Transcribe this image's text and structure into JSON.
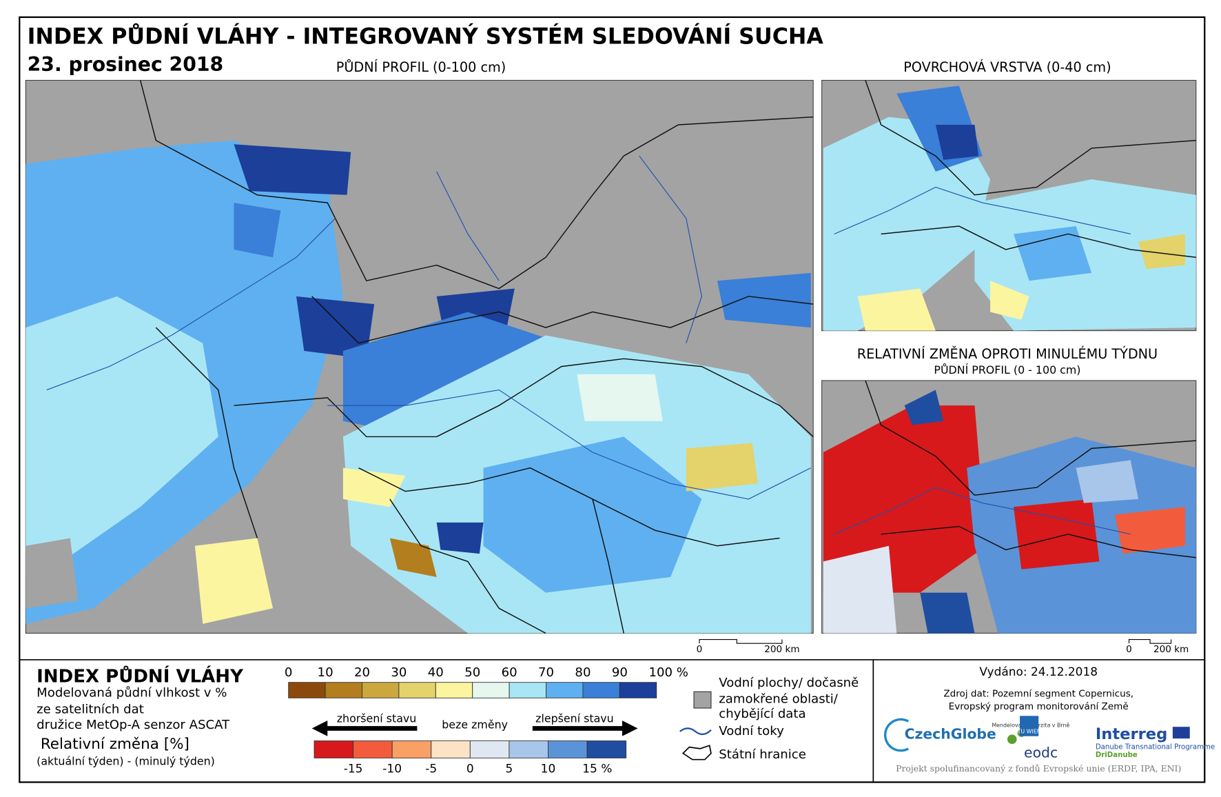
{
  "header": {
    "title": "INDEX PŮDNÍ VLÁHY - INTEGROVANÝ SYSTÉM SLEDOVÁNÍ SUCHA",
    "date": "23. prosinec 2018"
  },
  "main_map": {
    "title": "PŮDNÍ PROFIL (0-100 cm)",
    "scale_bar": [
      "0",
      "200 km"
    ]
  },
  "surface_map": {
    "title": "POVRCHOVÁ VRSTVA (0-40 cm)"
  },
  "change_map": {
    "title": "RELATIVNÍ ZMĚNA OPROTI MINULÉMU TÝDNU",
    "subtitle": "PŮDNÍ PROFIL (0 - 100 cm)",
    "scale_bar": [
      "0",
      "200 km"
    ]
  },
  "legend": {
    "title": "INDEX PŮDNÍ VLÁHY",
    "description": [
      "Modelovaná půdní vlhkost v %",
      "ze satelitních dat",
      "družice MetOp-A senzor ASCAT"
    ],
    "change_title": "Relativní změna [%]",
    "change_note": "(aktuální týden) - (minulý týden)",
    "moisture_scale": {
      "labels": [
        "0",
        "10",
        "20",
        "30",
        "40",
        "50",
        "60",
        "70",
        "80",
        "90",
        "100 %"
      ],
      "colors": [
        "#8b4a0b",
        "#b37e1e",
        "#cba83d",
        "#e3d36a",
        "#fbf5a0",
        "#e6f7f0",
        "#a9e6f5",
        "#5fb0f0",
        "#3a7fd8",
        "#1c3f99"
      ]
    },
    "change_scale": {
      "worse": "zhoršení stavu",
      "none": "beze změny",
      "better": "zlepšení stavu",
      "labels": [
        "-15",
        "-10",
        "-5",
        "0",
        "5",
        "10",
        "15 %"
      ],
      "colors": [
        "#d7191c",
        "#f25c3c",
        "#f9a065",
        "#fde3c6",
        "#dfe8f2",
        "#a8c6ea",
        "#5b93d8",
        "#1f4ea0"
      ]
    },
    "symbols": {
      "water_areas": [
        "Vodní plochy/ dočasně",
        "zamokřené oblasti/",
        "chybějící data"
      ],
      "rivers": "Vodní toky",
      "borders": "Státní hranice"
    }
  },
  "footer": {
    "issued": "Vydáno: 24.12.2018",
    "source": [
      "Zdroj dat: Pozemní segment Copernicus,",
      "Evropský program monitorování Země"
    ],
    "logos": {
      "czechglobe": "CzechGlobe",
      "mendelu": "Mendelova univerzita v Brně",
      "tuwien": "TU WIEN",
      "eodc": "eodc",
      "interreg": "Interreg",
      "programme": "Danube Transnational Programme",
      "project": "DriDanube"
    },
    "funding": "Projekt spolufinancovaný z fondů Evropské unie (ERDF, IPA, ENI)"
  }
}
